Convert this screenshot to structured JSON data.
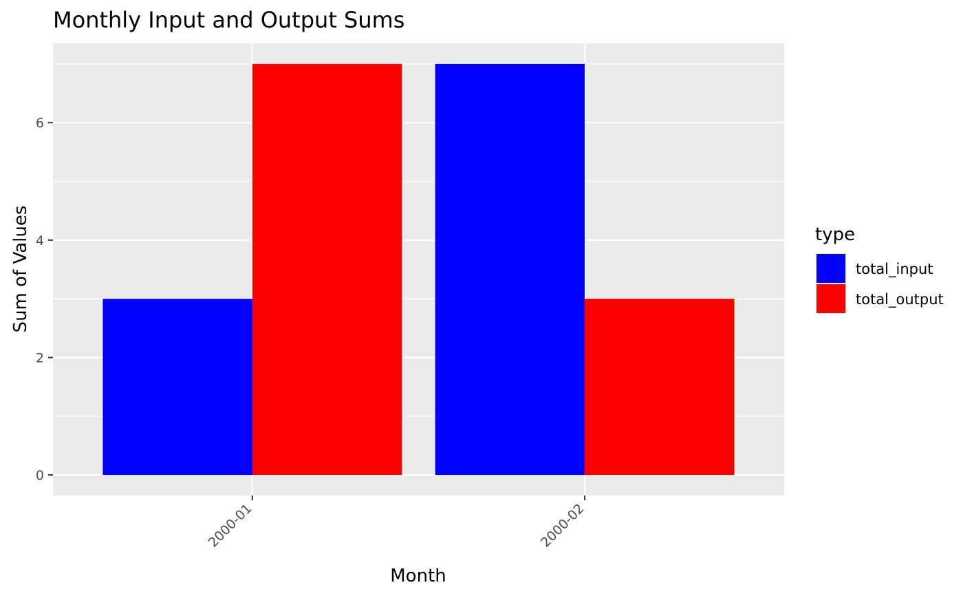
{
  "chart_data": {
    "type": "bar",
    "title": "Monthly Input and Output Sums",
    "xlabel": "Month",
    "ylabel": "Sum of Values",
    "categories": [
      "2000-01",
      "2000-02"
    ],
    "series": [
      {
        "name": "total_input",
        "values": [
          3,
          7
        ],
        "color": "#0000ff"
      },
      {
        "name": "total_output",
        "values": [
          7,
          3
        ],
        "color": "#ff0000"
      }
    ],
    "ylim": [
      -0.35,
      7.35
    ],
    "yticks": [
      0,
      2,
      4,
      6
    ],
    "yticks_minor": [
      1,
      3,
      5,
      7
    ],
    "legend": {
      "title": "type",
      "position": "right"
    },
    "grid": true,
    "panel_background": "#ebebeb",
    "grid_color": "#ffffff"
  }
}
